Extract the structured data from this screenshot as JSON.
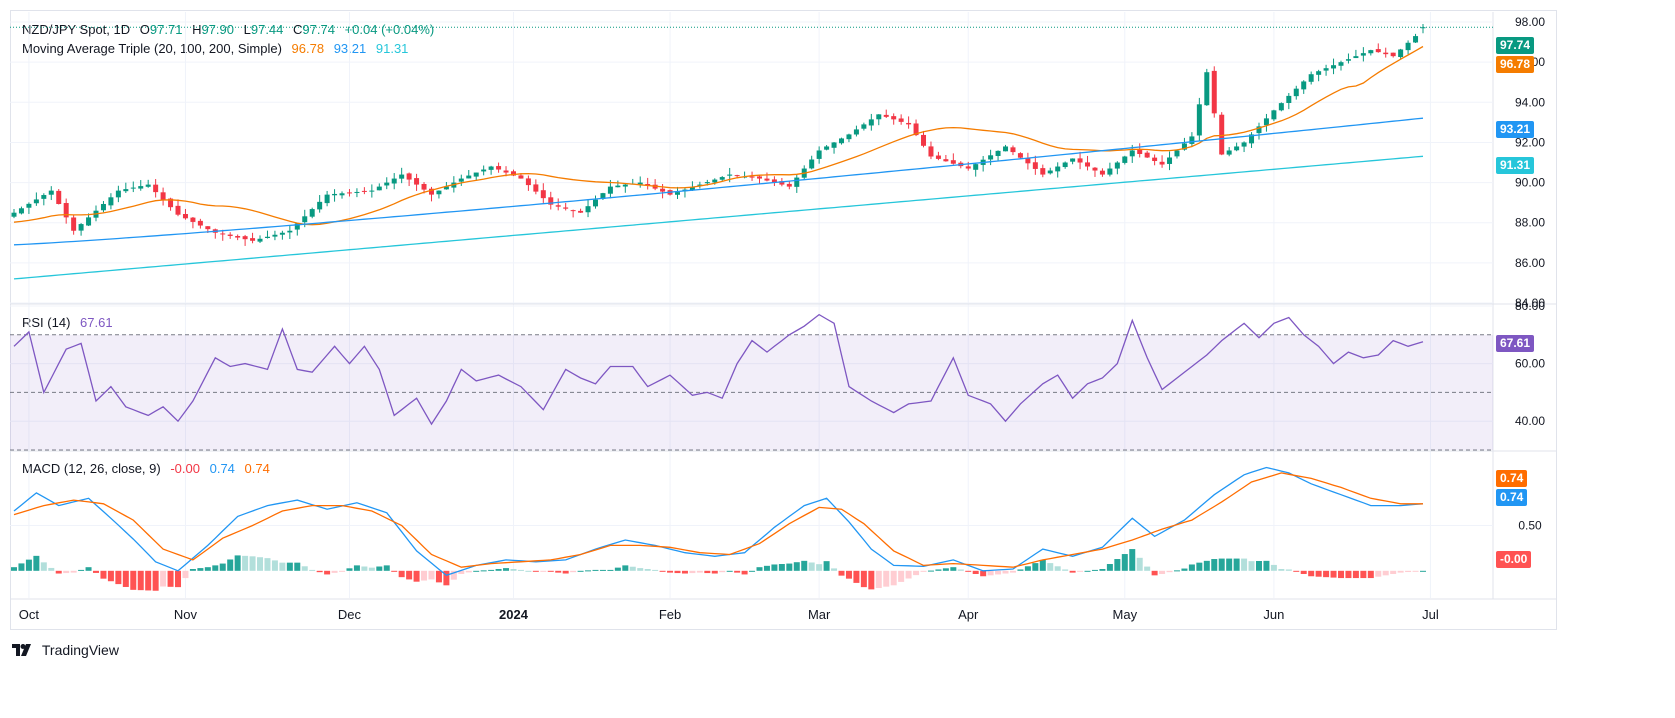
{
  "header": {
    "symbol": "NZD/JPY Spot, 1D",
    "O_label": "O",
    "O": "97.71",
    "H_label": "H",
    "H": "97.90",
    "L_label": "L",
    "L": "97.44",
    "C_label": "C",
    "C": "97.74",
    "change": "+0.04 (+0.04%)",
    "ma_label": "Moving Average Triple (20, 100, 200, Simple)",
    "ma20": "96.78",
    "ma100": "93.21",
    "ma200": "91.31"
  },
  "rsi_legend": {
    "label": "RSI (14)",
    "value": "67.61"
  },
  "macd_legend": {
    "label": "MACD (12, 26, close, 9)",
    "hist": "-0.00",
    "macd": "0.74",
    "signal": "0.74"
  },
  "colors": {
    "up": "#089981",
    "down": "#f23645",
    "ma20": "#f57c00",
    "ma100": "#2196f3",
    "ma200": "#26c6da",
    "rsi": "#7e57c2",
    "macd": "#2196f3",
    "signal": "#ff6d00",
    "hist_up_strong": "#26a69a",
    "hist_up_weak": "#b2dfdb",
    "hist_down_strong": "#ff5252",
    "hist_down_weak": "#ffcdd2"
  },
  "x_axis": {
    "ticks": [
      "Oct",
      "Nov",
      "Dec",
      "2024",
      "Feb",
      "Mar",
      "Apr",
      "May",
      "Jun",
      "Jul"
    ]
  },
  "price_tags": {
    "last": "97.74",
    "ma20": "96.78",
    "ma100": "93.21",
    "ma200": "91.31"
  },
  "rsi_tag": "67.61",
  "macd_tags": {
    "signal": "0.74",
    "macd": "0.74",
    "hist": "-0.00"
  },
  "footer": {
    "brand": "TradingView"
  },
  "chart_data": [
    {
      "type": "candlestick",
      "title": "NZD/JPY Spot, 1D",
      "ylim": [
        84,
        98.5
      ],
      "y_ticks": [
        "84.00",
        "86.00",
        "88.00",
        "90.00",
        "92.00",
        "94.00",
        "96.00",
        "98.00"
      ],
      "candle_count": 190,
      "close_keypoints": [
        [
          0,
          88.5
        ],
        [
          5,
          89.6
        ],
        [
          8,
          87.6
        ],
        [
          14,
          89.6
        ],
        [
          18,
          89.9
        ],
        [
          22,
          88.4
        ],
        [
          27,
          87.5
        ],
        [
          32,
          87.1
        ],
        [
          37,
          87.6
        ],
        [
          42,
          89.4
        ],
        [
          48,
          89.6
        ],
        [
          52,
          90.4
        ],
        [
          56,
          89.4
        ],
        [
          60,
          90.2
        ],
        [
          64,
          90.8
        ],
        [
          68,
          90.2
        ],
        [
          72,
          88.9
        ],
        [
          76,
          88.5
        ],
        [
          80,
          89.8
        ],
        [
          84,
          90.0
        ],
        [
          88,
          89.4
        ],
        [
          92,
          89.9
        ],
        [
          96,
          90.4
        ],
        [
          100,
          90.2
        ],
        [
          104,
          89.8
        ],
        [
          108,
          91.6
        ],
        [
          112,
          92.4
        ],
        [
          116,
          93.4
        ],
        [
          120,
          92.9
        ],
        [
          123,
          91.3
        ],
        [
          128,
          90.7
        ],
        [
          133,
          91.8
        ],
        [
          138,
          90.4
        ],
        [
          142,
          91.2
        ],
        [
          146,
          90.4
        ],
        [
          150,
          91.6
        ],
        [
          154,
          90.9
        ],
        [
          158,
          92.3
        ],
        [
          160,
          95.5
        ],
        [
          162,
          91.4
        ],
        [
          165,
          92.0
        ],
        [
          169,
          93.6
        ],
        [
          174,
          95.4
        ],
        [
          178,
          96.0
        ],
        [
          182,
          96.6
        ],
        [
          185,
          96.3
        ],
        [
          188,
          97.3
        ],
        [
          189,
          97.74
        ]
      ],
      "last": {
        "open": 97.71,
        "high": 97.9,
        "low": 97.44,
        "close": 97.74
      },
      "series": [
        {
          "name": "MA 20",
          "last": 96.78
        },
        {
          "name": "MA 100",
          "last": 93.21
        },
        {
          "name": "MA 200",
          "last": 91.31
        }
      ]
    },
    {
      "type": "line",
      "title": "RSI (14)",
      "ylim": [
        30,
        80
      ],
      "y_ticks": [
        "40.00",
        "60.00",
        "80.00"
      ],
      "band": [
        30,
        70
      ],
      "last": 67.61,
      "keypoints": [
        [
          0,
          66
        ],
        [
          2,
          71
        ],
        [
          4,
          50
        ],
        [
          7,
          65
        ],
        [
          9,
          67
        ],
        [
          11,
          47
        ],
        [
          13,
          52
        ],
        [
          15,
          45
        ],
        [
          18,
          42
        ],
        [
          20,
          45
        ],
        [
          22,
          40
        ],
        [
          24,
          47
        ],
        [
          27,
          62
        ],
        [
          29,
          59
        ],
        [
          31,
          60
        ],
        [
          34,
          58
        ],
        [
          36,
          72
        ],
        [
          38,
          58
        ],
        [
          40,
          57
        ],
        [
          43,
          66
        ],
        [
          45,
          60
        ],
        [
          47,
          66
        ],
        [
          49,
          58
        ],
        [
          51,
          42
        ],
        [
          54,
          48
        ],
        [
          56,
          39
        ],
        [
          58,
          47
        ],
        [
          60,
          58
        ],
        [
          62,
          54
        ],
        [
          65,
          56
        ],
        [
          68,
          52
        ],
        [
          71,
          44
        ],
        [
          74,
          58
        ],
        [
          76,
          55
        ],
        [
          78,
          53
        ],
        [
          80,
          59
        ],
        [
          83,
          59
        ],
        [
          85,
          52
        ],
        [
          88,
          56
        ],
        [
          91,
          49
        ],
        [
          93,
          50
        ],
        [
          95,
          48
        ],
        [
          97,
          60
        ],
        [
          99,
          68
        ],
        [
          101,
          64
        ],
        [
          104,
          70
        ],
        [
          106,
          73
        ],
        [
          108,
          77
        ],
        [
          110,
          74
        ],
        [
          112,
          52
        ],
        [
          115,
          47
        ],
        [
          118,
          43
        ],
        [
          120,
          46
        ],
        [
          123,
          47
        ],
        [
          126,
          62
        ],
        [
          128,
          49
        ],
        [
          131,
          46
        ],
        [
          133,
          40
        ],
        [
          135,
          46
        ],
        [
          138,
          53
        ],
        [
          140,
          56
        ],
        [
          142,
          48
        ],
        [
          144,
          53
        ],
        [
          146,
          55
        ],
        [
          148,
          60
        ],
        [
          150,
          75
        ],
        [
          152,
          62
        ],
        [
          154,
          51
        ],
        [
          157,
          57
        ],
        [
          160,
          63
        ],
        [
          162,
          68
        ],
        [
          165,
          74
        ],
        [
          167,
          69
        ],
        [
          169,
          74
        ],
        [
          171,
          76
        ],
        [
          173,
          70
        ],
        [
          175,
          66
        ],
        [
          177,
          60
        ],
        [
          179,
          64
        ],
        [
          181,
          62
        ],
        [
          183,
          63
        ],
        [
          185,
          68
        ],
        [
          187,
          66
        ],
        [
          189,
          67.61
        ]
      ]
    },
    {
      "type": "line+histogram",
      "title": "MACD (12, 26, close, 9)",
      "ylim": [
        -0.3,
        1.3
      ],
      "y_ticks": [
        "0.50"
      ],
      "series": [
        {
          "name": "MACD",
          "last": 0.74,
          "keypoints": [
            [
              0,
              0.66
            ],
            [
              3,
              0.86
            ],
            [
              6,
              0.72
            ],
            [
              10,
              0.8
            ],
            [
              13,
              0.58
            ],
            [
              16,
              0.35
            ],
            [
              19,
              0.1
            ],
            [
              22,
              0.0
            ],
            [
              26,
              0.28
            ],
            [
              30,
              0.6
            ],
            [
              34,
              0.72
            ],
            [
              38,
              0.78
            ],
            [
              42,
              0.68
            ],
            [
              46,
              0.75
            ],
            [
              50,
              0.64
            ],
            [
              54,
              0.22
            ],
            [
              58,
              -0.05
            ],
            [
              62,
              0.06
            ],
            [
              66,
              0.12
            ],
            [
              70,
              0.1
            ],
            [
              74,
              0.12
            ],
            [
              78,
              0.24
            ],
            [
              82,
              0.34
            ],
            [
              86,
              0.28
            ],
            [
              90,
              0.2
            ],
            [
              94,
              0.16
            ],
            [
              98,
              0.2
            ],
            [
              102,
              0.48
            ],
            [
              106,
              0.72
            ],
            [
              109,
              0.8
            ],
            [
              112,
              0.54
            ],
            [
              115,
              0.24
            ],
            [
              118,
              0.06
            ],
            [
              122,
              0.05
            ],
            [
              126,
              0.12
            ],
            [
              130,
              0.0
            ],
            [
              134,
              0.02
            ],
            [
              138,
              0.24
            ],
            [
              142,
              0.16
            ],
            [
              146,
              0.26
            ],
            [
              150,
              0.58
            ],
            [
              153,
              0.38
            ],
            [
              157,
              0.56
            ],
            [
              161,
              0.84
            ],
            [
              165,
              1.06
            ],
            [
              168,
              1.14
            ],
            [
              171,
              1.08
            ],
            [
              174,
              0.96
            ],
            [
              178,
              0.84
            ],
            [
              182,
              0.72
            ],
            [
              186,
              0.72
            ],
            [
              189,
              0.74
            ]
          ]
        },
        {
          "name": "Signal",
          "last": 0.74,
          "keypoints": [
            [
              0,
              0.62
            ],
            [
              4,
              0.72
            ],
            [
              8,
              0.78
            ],
            [
              12,
              0.74
            ],
            [
              16,
              0.56
            ],
            [
              20,
              0.24
            ],
            [
              24,
              0.12
            ],
            [
              28,
              0.36
            ],
            [
              32,
              0.5
            ],
            [
              36,
              0.66
            ],
            [
              40,
              0.72
            ],
            [
              44,
              0.72
            ],
            [
              48,
              0.66
            ],
            [
              52,
              0.5
            ],
            [
              56,
              0.18
            ],
            [
              60,
              0.04
            ],
            [
              64,
              0.08
            ],
            [
              68,
              0.1
            ],
            [
              72,
              0.12
            ],
            [
              76,
              0.18
            ],
            [
              80,
              0.28
            ],
            [
              84,
              0.28
            ],
            [
              88,
              0.26
            ],
            [
              92,
              0.2
            ],
            [
              96,
              0.18
            ],
            [
              100,
              0.3
            ],
            [
              104,
              0.52
            ],
            [
              108,
              0.7
            ],
            [
              111,
              0.68
            ],
            [
              114,
              0.52
            ],
            [
              118,
              0.22
            ],
            [
              122,
              0.06
            ],
            [
              126,
              0.08
            ],
            [
              130,
              0.06
            ],
            [
              134,
              0.04
            ],
            [
              138,
              0.12
            ],
            [
              142,
              0.18
            ],
            [
              146,
              0.24
            ],
            [
              150,
              0.34
            ],
            [
              154,
              0.46
            ],
            [
              158,
              0.56
            ],
            [
              162,
              0.76
            ],
            [
              166,
              0.98
            ],
            [
              170,
              1.08
            ],
            [
              174,
              1.02
            ],
            [
              178,
              0.92
            ],
            [
              182,
              0.8
            ],
            [
              186,
              0.74
            ],
            [
              189,
              0.74
            ]
          ]
        },
        {
          "name": "Histogram",
          "last": -0.0
        }
      ]
    }
  ]
}
